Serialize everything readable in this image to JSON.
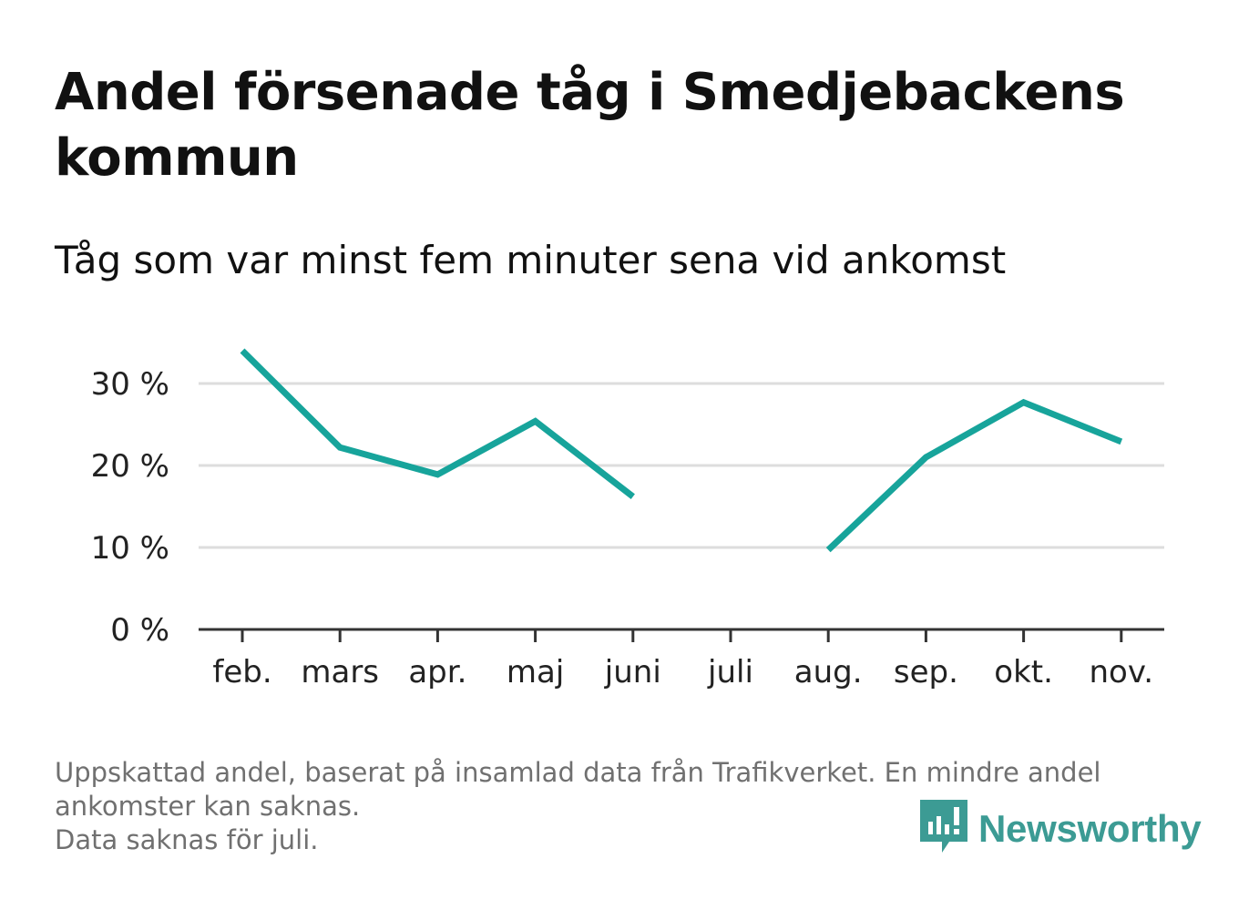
{
  "title": "Andel försenade tåg i Smedjebackens kommun",
  "subtitle": "Tåg som var minst fem minuter sena vid ankomst",
  "footnote": {
    "line1": "Uppskattad andel, baserat på insamlad data från Trafikverket. En mindre andel ankomster kan saknas.",
    "line2": "Data saknas för juli."
  },
  "brand": {
    "name": "Newsworthy",
    "color": "#3c9b94",
    "icon": "newsworthy-logo-icon"
  },
  "colors": {
    "line": "#17a49b",
    "grid": "#dddddd",
    "axis": "#333333",
    "text": "#222222"
  },
  "chart_data": {
    "type": "line",
    "categories": [
      "feb.",
      "mars",
      "apr.",
      "maj",
      "juni",
      "juli",
      "aug.",
      "sep.",
      "okt.",
      "nov."
    ],
    "series": [
      {
        "values": [
          34,
          22.2,
          18.9,
          25.4,
          16.2,
          null,
          9.7,
          21,
          27.7,
          22.9
        ]
      }
    ],
    "yticks": [
      0,
      10,
      20,
      30
    ],
    "ytick_labels": [
      "0 %",
      "10 %",
      "20 %",
      "30 %"
    ],
    "ylim": [
      0,
      36
    ],
    "grid": true,
    "legend": "none",
    "xlabel": "",
    "ylabel": ""
  }
}
